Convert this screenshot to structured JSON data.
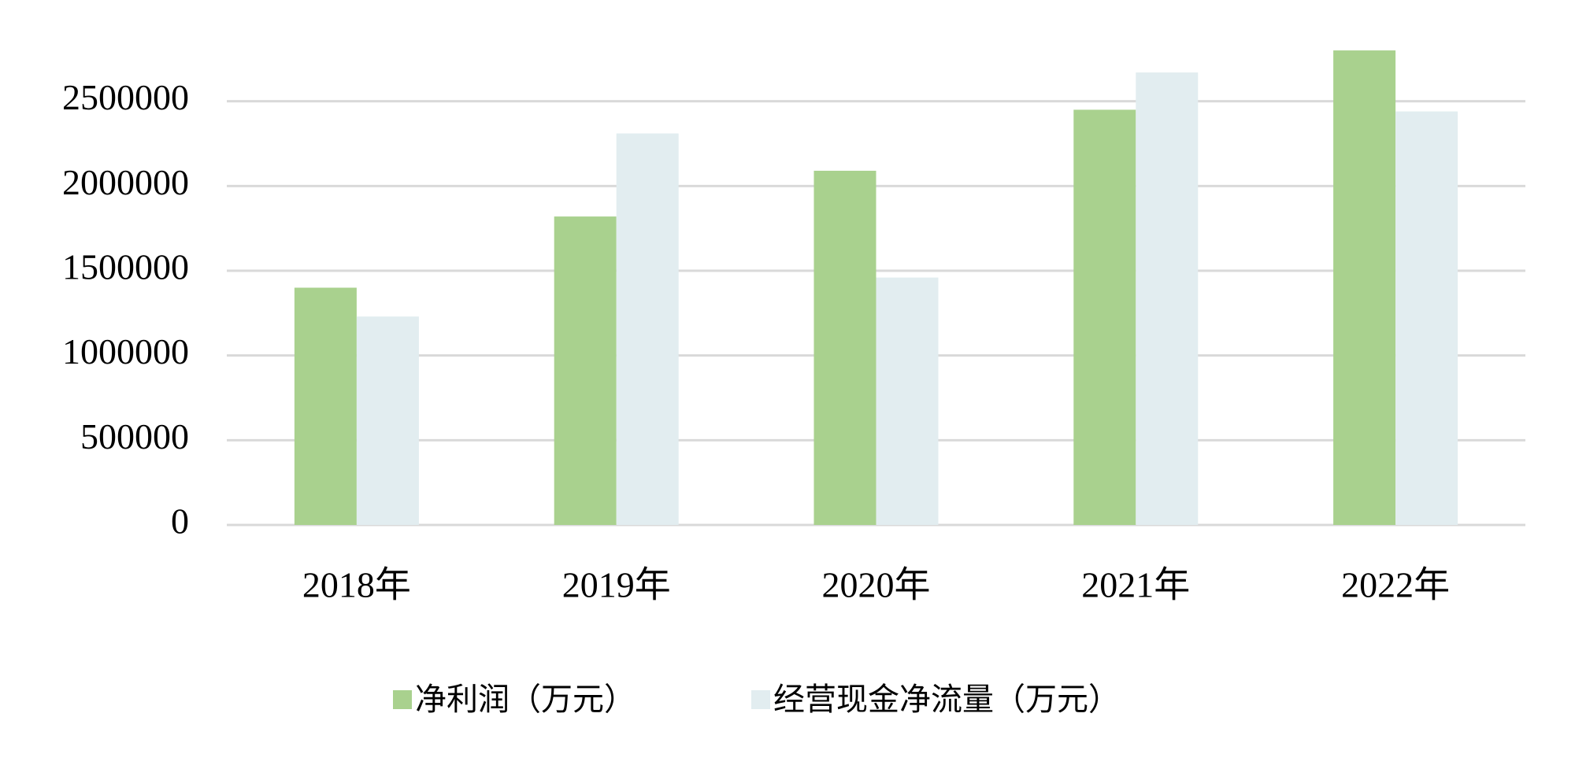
{
  "chart_data": {
    "type": "bar",
    "categories": [
      "2018年",
      "2019年",
      "2020年",
      "2021年",
      "2022年"
    ],
    "series": [
      {
        "name": "净利润（万元）",
        "color": "#a9d18e",
        "values": [
          1400000,
          1820000,
          2090000,
          2450000,
          2800000
        ]
      },
      {
        "name": "经营现金净流量（万元）",
        "color": "#e2edf0",
        "values": [
          1230000,
          2310000,
          1460000,
          2670000,
          2440000
        ]
      }
    ],
    "ylim": [
      0,
      3000000
    ],
    "yticks": [
      0,
      500000,
      1000000,
      1500000,
      2000000,
      2500000
    ],
    "grid": true,
    "legend": "bottom"
  }
}
